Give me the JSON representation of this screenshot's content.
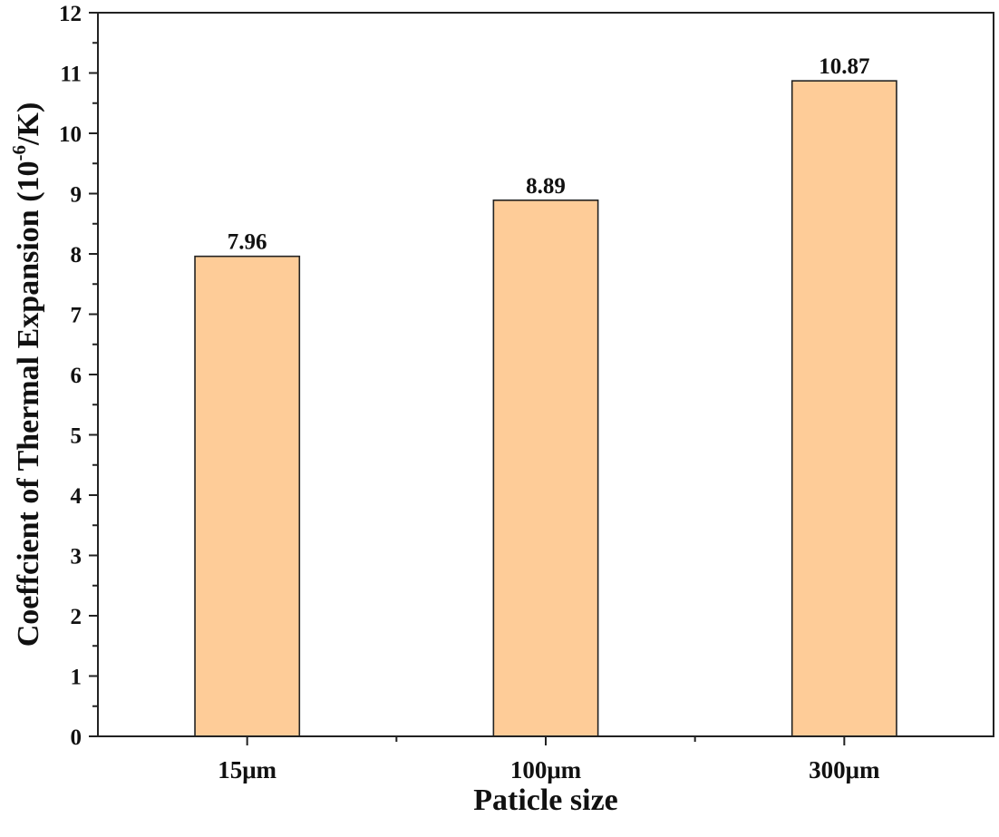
{
  "chart_data": {
    "type": "bar",
    "categories": [
      "15μm",
      "100μm",
      "300μm"
    ],
    "values": [
      7.96,
      8.89,
      10.87
    ],
    "data_labels": [
      "7.96",
      "8.89",
      "10.87"
    ],
    "title": "",
    "xlabel": "Paticle size",
    "ylabel_main": "Coeffcient of Thermal Expansion (10",
    "ylabel_sup": "-6",
    "ylabel_tail": "/K)",
    "ylim": [
      0,
      12
    ],
    "yticks": [
      0,
      1,
      2,
      3,
      4,
      5,
      6,
      7,
      8,
      9,
      10,
      11,
      12
    ],
    "grid": false,
    "legend": "none",
    "bar_color": "#fecc98",
    "axis_color": "#222222"
  }
}
